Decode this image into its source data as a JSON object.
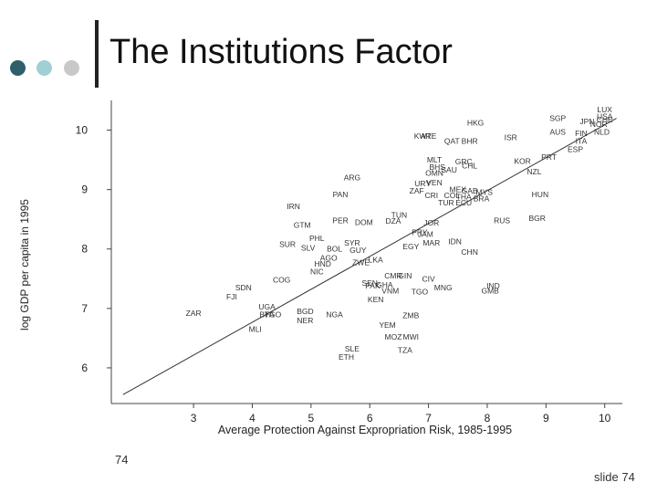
{
  "slide": {
    "title": "The Institutions Factor",
    "left_footer": "74",
    "right_footer": "slide 74",
    "dot_colors": [
      "#2f5f6b",
      "#9fd0d4",
      "#c8c8c8"
    ]
  },
  "chart_data": {
    "type": "scatter",
    "xlabel": "Average Protection Against Expropriation Risk, 1985-1995",
    "ylabel": "log GDP per capita in 1995",
    "xlim": [
      1.6,
      10.3
    ],
    "ylim": [
      5.4,
      10.5
    ],
    "xticks": [
      3,
      4,
      5,
      6,
      7,
      8,
      9,
      10
    ],
    "yticks": [
      6,
      7,
      8,
      9,
      10
    ],
    "grid": false,
    "fit_line": {
      "x": [
        1.8,
        10.2
      ],
      "y": [
        5.55,
        10.2
      ]
    },
    "points": [
      {
        "label": "LUX",
        "x": 10.0,
        "y": 10.35
      },
      {
        "label": "USA",
        "x": 10.0,
        "y": 10.23
      },
      {
        "label": "CHE",
        "x": 10.0,
        "y": 10.18
      },
      {
        "label": "NOR",
        "x": 9.9,
        "y": 10.1
      },
      {
        "label": "JPN",
        "x": 9.7,
        "y": 10.15
      },
      {
        "label": "SGP",
        "x": 9.2,
        "y": 10.2
      },
      {
        "label": "AUS",
        "x": 9.2,
        "y": 9.97
      },
      {
        "label": "NLD",
        "x": 9.95,
        "y": 9.97
      },
      {
        "label": "FIN",
        "x": 9.6,
        "y": 9.95
      },
      {
        "label": "ITA",
        "x": 9.6,
        "y": 9.82
      },
      {
        "label": "ESP",
        "x": 9.5,
        "y": 9.68
      },
      {
        "label": "HKG",
        "x": 7.8,
        "y": 10.12
      },
      {
        "label": "KWT",
        "x": 6.9,
        "y": 9.9
      },
      {
        "label": "ARE",
        "x": 7.0,
        "y": 9.9
      },
      {
        "label": "ISR",
        "x": 8.4,
        "y": 9.88
      },
      {
        "label": "QAT",
        "x": 7.4,
        "y": 9.82
      },
      {
        "label": "BHR",
        "x": 7.7,
        "y": 9.82
      },
      {
        "label": "MLT",
        "x": 7.1,
        "y": 9.5
      },
      {
        "label": "GRC",
        "x": 7.6,
        "y": 9.47
      },
      {
        "label": "PRT",
        "x": 9.05,
        "y": 9.55
      },
      {
        "label": "KOR",
        "x": 8.6,
        "y": 9.48
      },
      {
        "label": "NZL",
        "x": 8.8,
        "y": 9.3
      },
      {
        "label": "BHS",
        "x": 7.15,
        "y": 9.38
      },
      {
        "label": "CHL",
        "x": 7.7,
        "y": 9.4
      },
      {
        "label": "OMN",
        "x": 7.1,
        "y": 9.28
      },
      {
        "label": "SAU",
        "x": 7.35,
        "y": 9.33
      },
      {
        "label": "ARG",
        "x": 5.7,
        "y": 9.2
      },
      {
        "label": "URY",
        "x": 6.9,
        "y": 9.1
      },
      {
        "label": "VEN",
        "x": 7.1,
        "y": 9.12
      },
      {
        "label": "MEX",
        "x": 7.5,
        "y": 9.0
      },
      {
        "label": "GAB",
        "x": 7.7,
        "y": 8.98
      },
      {
        "label": "MYS",
        "x": 7.95,
        "y": 8.96
      },
      {
        "label": "ZAF",
        "x": 6.8,
        "y": 8.98
      },
      {
        "label": "PAN",
        "x": 5.5,
        "y": 8.92
      },
      {
        "label": "HUN",
        "x": 8.9,
        "y": 8.92
      },
      {
        "label": "CRI",
        "x": 7.05,
        "y": 8.9
      },
      {
        "label": "COL",
        "x": 7.4,
        "y": 8.9
      },
      {
        "label": "THA",
        "x": 7.6,
        "y": 8.88
      },
      {
        "label": "BRA",
        "x": 7.9,
        "y": 8.85
      },
      {
        "label": "TUR",
        "x": 7.3,
        "y": 8.78
      },
      {
        "label": "ECU",
        "x": 7.6,
        "y": 8.78
      },
      {
        "label": "IRN",
        "x": 4.7,
        "y": 8.72
      },
      {
        "label": "TUN",
        "x": 6.5,
        "y": 8.57
      },
      {
        "label": "PER",
        "x": 5.5,
        "y": 8.48
      },
      {
        "label": "DOM",
        "x": 5.9,
        "y": 8.45
      },
      {
        "label": "DZA",
        "x": 6.4,
        "y": 8.47
      },
      {
        "label": "JOR",
        "x": 7.05,
        "y": 8.44
      },
      {
        "label": "RUS",
        "x": 8.25,
        "y": 8.48
      },
      {
        "label": "BGR",
        "x": 8.85,
        "y": 8.52
      },
      {
        "label": "GTM",
        "x": 4.85,
        "y": 8.4
      },
      {
        "label": "PRY",
        "x": 6.85,
        "y": 8.28
      },
      {
        "label": "SYR",
        "x": 5.7,
        "y": 8.1
      },
      {
        "label": "BOL",
        "x": 5.4,
        "y": 8.0
      },
      {
        "label": "GUY",
        "x": 5.8,
        "y": 7.98
      },
      {
        "label": "PHL",
        "x": 5.1,
        "y": 8.18
      },
      {
        "label": "JAM",
        "x": 6.95,
        "y": 8.25
      },
      {
        "label": "MAR",
        "x": 7.05,
        "y": 8.1
      },
      {
        "label": "EGY",
        "x": 6.7,
        "y": 8.04
      },
      {
        "label": "IDN",
        "x": 7.45,
        "y": 8.13
      },
      {
        "label": "CHN",
        "x": 7.7,
        "y": 7.95
      },
      {
        "label": "SUR",
        "x": 4.6,
        "y": 8.08
      },
      {
        "label": "SLV",
        "x": 4.95,
        "y": 8.02
      },
      {
        "label": "AGO",
        "x": 5.3,
        "y": 7.85
      },
      {
        "label": "HND",
        "x": 5.2,
        "y": 7.75
      },
      {
        "label": "NIC",
        "x": 5.1,
        "y": 7.62
      },
      {
        "label": "ZWE",
        "x": 5.85,
        "y": 7.77
      },
      {
        "label": "LKA",
        "x": 6.1,
        "y": 7.82
      },
      {
        "label": "COG",
        "x": 4.5,
        "y": 7.48
      },
      {
        "label": "CMR",
        "x": 6.4,
        "y": 7.55
      },
      {
        "label": "GIN",
        "x": 6.6,
        "y": 7.55
      },
      {
        "label": "CIV",
        "x": 7.0,
        "y": 7.5
      },
      {
        "label": "SEN",
        "x": 6.0,
        "y": 7.43
      },
      {
        "label": "PAK",
        "x": 6.05,
        "y": 7.38
      },
      {
        "label": "GHA",
        "x": 6.25,
        "y": 7.4
      },
      {
        "label": "VNM",
        "x": 6.35,
        "y": 7.3
      },
      {
        "label": "TGO",
        "x": 6.85,
        "y": 7.28
      },
      {
        "label": "MNG",
        "x": 7.25,
        "y": 7.35
      },
      {
        "label": "IND",
        "x": 8.1,
        "y": 7.38
      },
      {
        "label": "GMB",
        "x": 8.05,
        "y": 7.3
      },
      {
        "label": "SDN",
        "x": 3.85,
        "y": 7.35
      },
      {
        "label": "FJI",
        "x": 3.65,
        "y": 7.2
      },
      {
        "label": "KEN",
        "x": 6.1,
        "y": 7.15
      },
      {
        "label": "UGA",
        "x": 4.25,
        "y": 7.03
      },
      {
        "label": "BFA",
        "x": 4.25,
        "y": 6.9
      },
      {
        "label": "TGO",
        "x": 4.35,
        "y": 6.9
      },
      {
        "label": "BGD",
        "x": 4.9,
        "y": 6.95
      },
      {
        "label": "NGA",
        "x": 5.4,
        "y": 6.9
      },
      {
        "label": "NER",
        "x": 4.9,
        "y": 6.8
      },
      {
        "label": "ZAR",
        "x": 3.0,
        "y": 6.92
      },
      {
        "label": "MLI",
        "x": 4.05,
        "y": 6.65
      },
      {
        "label": "ZMB",
        "x": 6.7,
        "y": 6.88
      },
      {
        "label": "YEM",
        "x": 6.3,
        "y": 6.72
      },
      {
        "label": "MOZ",
        "x": 6.4,
        "y": 6.52
      },
      {
        "label": "MWI",
        "x": 6.7,
        "y": 6.52
      },
      {
        "label": "TZA",
        "x": 6.6,
        "y": 6.3
      },
      {
        "label": "SLE",
        "x": 5.7,
        "y": 6.32
      },
      {
        "label": "ETH",
        "x": 5.6,
        "y": 6.18
      }
    ]
  }
}
